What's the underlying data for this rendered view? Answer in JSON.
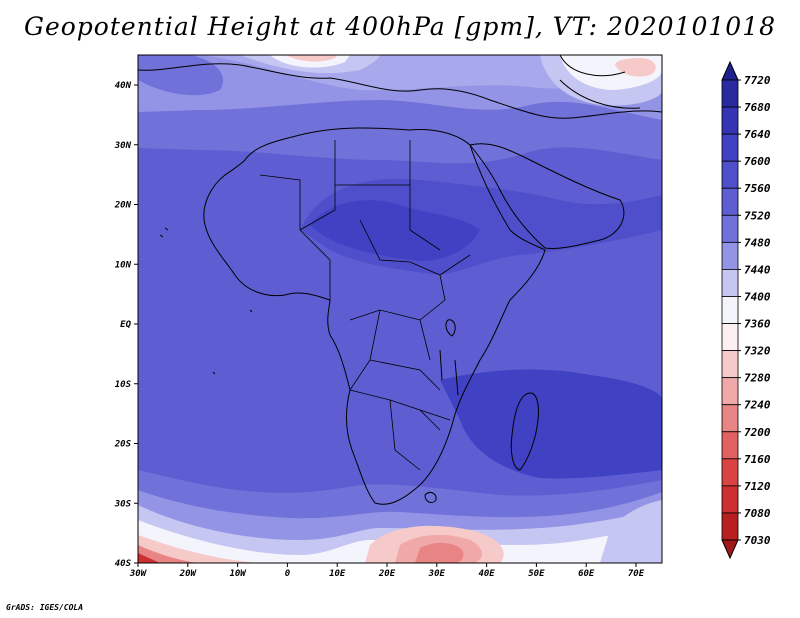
{
  "title": "Geopotential Height at 400hPa [gpm], VT: 2020101018",
  "credit": "GrADS: IGES/COLA",
  "map": {
    "lon_ticks": [
      "30W",
      "20W",
      "10W",
      "0",
      "10E",
      "20E",
      "30E",
      "40E",
      "50E",
      "60E",
      "70E"
    ],
    "lat_ticks": [
      "40N",
      "30N",
      "20N",
      "10N",
      "EQ",
      "10S",
      "20S",
      "30S",
      "40S"
    ]
  },
  "colorbar": {
    "levels": [
      "7720",
      "7680",
      "7640",
      "7600",
      "7560",
      "7520",
      "7480",
      "7440",
      "7400",
      "7360",
      "7320",
      "7280",
      "7240",
      "7200",
      "7160",
      "7120",
      "7080",
      "7030"
    ],
    "colors": [
      "#1f1f8f",
      "#2a2aa0",
      "#3434b4",
      "#4141c4",
      "#4f4fcc",
      "#5e5ed2",
      "#7171da",
      "#9494e6",
      "#c6c6f2",
      "#f4f4fc",
      "#fcf0f0",
      "#f7caca",
      "#f0a8a8",
      "#e88484",
      "#e06262",
      "#d84444",
      "#cc3030",
      "#b82020",
      "#a01818"
    ]
  }
}
